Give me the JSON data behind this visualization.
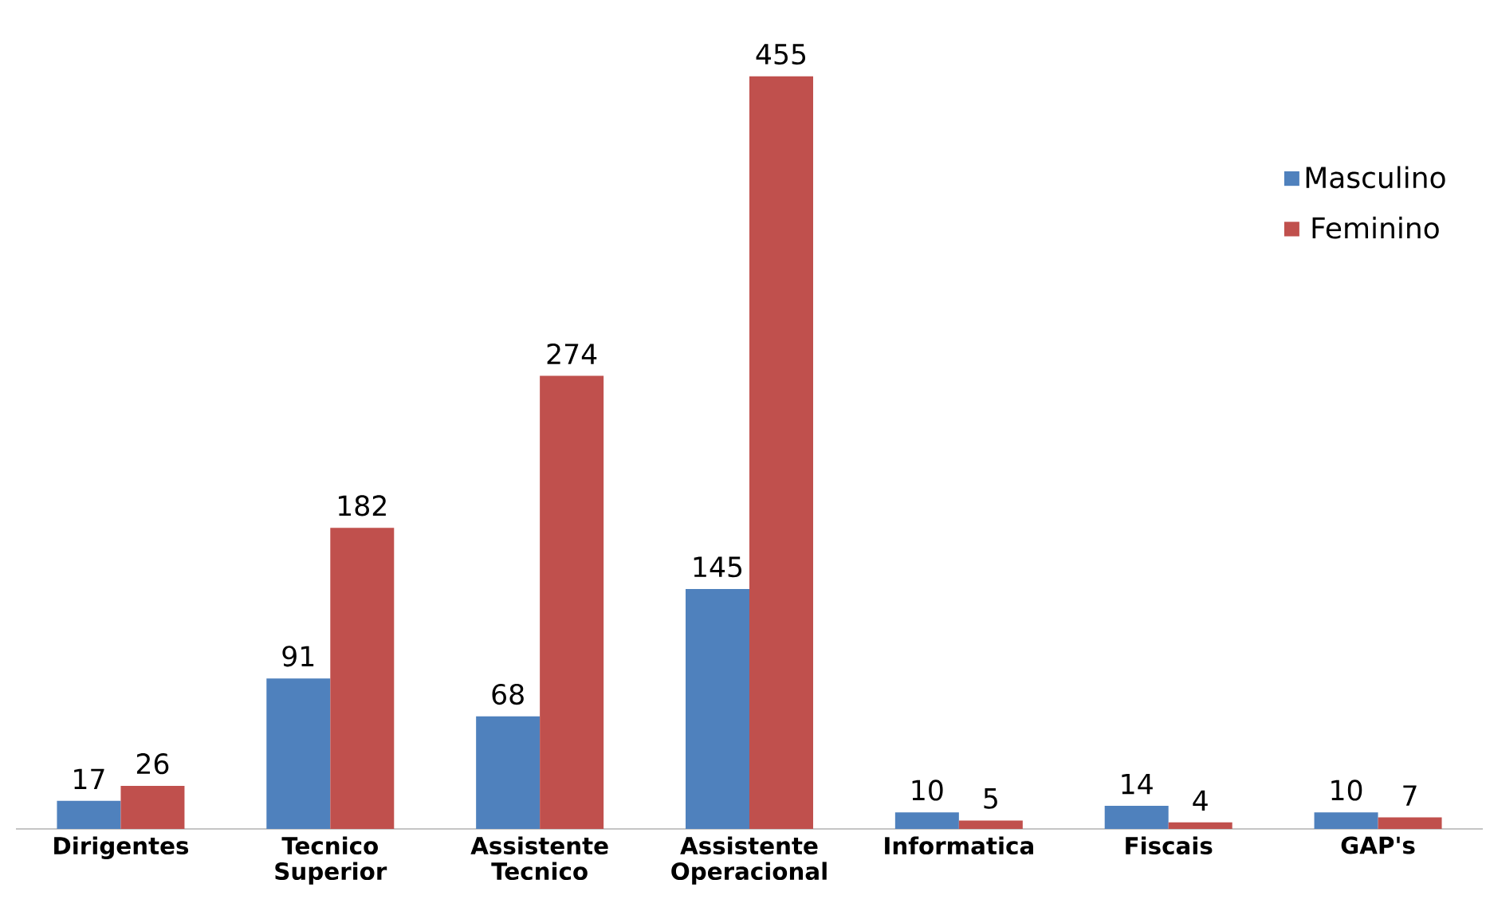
{
  "chart_data": {
    "type": "bar",
    "categories": [
      "Dirigentes",
      "Tecnico Superior",
      "Assistente Tecnico",
      "Assistente Operacional",
      "Informatica",
      "Fiscais",
      "GAP's"
    ],
    "series": [
      {
        "name": "Masculino",
        "color": "#4f81bd",
        "values": [
          17,
          91,
          68,
          145,
          10,
          14,
          10
        ]
      },
      {
        "name": "Feminino",
        "color": "#c0504d",
        "values": [
          26,
          182,
          274,
          455,
          5,
          4,
          7
        ]
      }
    ],
    "data_labels": true,
    "legend": "right",
    "tick_labels": "x"
  }
}
